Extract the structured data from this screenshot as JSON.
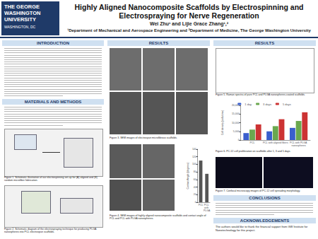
{
  "header": {
    "university": [
      "THE GEORGE",
      "WASHINGTON",
      "UNIVERSITY",
      "WASHINGTON, DC"
    ],
    "title": "Highly Aligned Nanocomposite Scaffolds by Electrospinning and Electrospraying for Nerve Regeneration",
    "authors": "Wei Zhu¹ and Lijie Grace Zhang¹,²",
    "affiliations": "¹Department of Mechanical and Aerospace Engineering and ²Department of Medicine, The George Washington University"
  },
  "sections": [
    "INTRODUCTION",
    "MATERIALS AND METHODS",
    "RESULTS",
    "RESULTS",
    "CONCLUSIONS",
    "ACKNOWLEDGEMENTS"
  ],
  "captions": [
    "Figure 1. Schematic illustration of our electrospinning set-up for (A) aligned and (B) random microfiber fabrication.",
    "Figure 2. Schematic diagram of the electrospraying technique for producing PLGA nanospheres into PCL electrospun scaffolds.",
    "Figure 3. SEM images of electrospun microfibrous scaffolds.",
    "Figure 4. SEM images of highly aligned nanocomposite scaffolds and contact angle of PCL and PCL with PLGA nanospheres.",
    "Figure 5. Raman spectra of pure PCL and PLGA nanospheres-coated scaffolds.",
    "Figure 6. PC-12 cell proliferation on scaffolds after 1, 3 and 5 days.",
    "Figure 7. Confocal microscopy images of PC-12 cell spreading morphology."
  ],
  "acknowledgements_text": "The authors would like to thank the financial support from GW Institute for Nanotechnology for this project.",
  "chart_data": [
    {
      "type": "bar",
      "y_label": "Cell density (cells/cm²)",
      "categories": [
        "PCL",
        "PCL with aligned fibers",
        "PCL with PLGA nanospheres"
      ],
      "series": [
        {
          "name": "1 day",
          "color": "#3a5fcd",
          "values": [
            4000,
            5000,
            7000
          ]
        },
        {
          "name": "3 days",
          "color": "#6aa84f",
          "values": [
            6000,
            8000,
            11000
          ]
        },
        {
          "name": "5 days",
          "color": "#cc3333",
          "values": [
            9000,
            12000,
            16000
          ]
        }
      ],
      "ylim": [
        0,
        20000
      ],
      "yticks": [
        0,
        5000,
        10000,
        15000,
        20000
      ],
      "legend": "top",
      "grid": false
    },
    {
      "type": "bar",
      "y_label": "Contact Angle (degrees)",
      "categories": [
        "PCL",
        "PCL with PLGA"
      ],
      "values": [
        110,
        75
      ],
      "color": "#555555",
      "ylim": [
        0,
        140
      ],
      "yticks": [
        0,
        20,
        40,
        60,
        80,
        100,
        120,
        140
      ],
      "grid": false
    }
  ]
}
